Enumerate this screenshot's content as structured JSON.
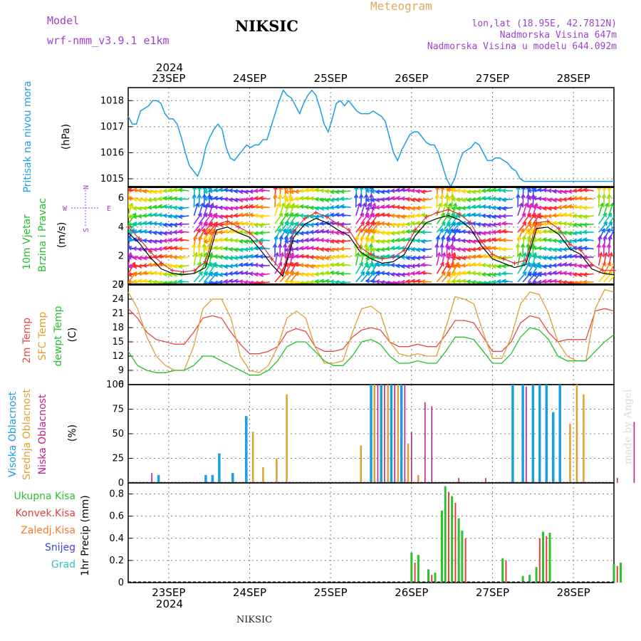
{
  "header": {
    "model_label": "Model",
    "model_name": "wrf-nmm_v3.9.1  e1km",
    "station": "NIKSIC",
    "product": "Meteogram",
    "lonlat": "lon,lat (18.95E, 42.7812N)",
    "elevation": "Nadmorska Visina 647m",
    "model_elevation": "Nadmorska Visina u modelu 644.092m",
    "year": "2024",
    "watermark": "made by Angel",
    "footer_station": "NIKSIC"
  },
  "colors": {
    "pressure": "#1a9fe0",
    "wind_speed": "#000000",
    "wind_gust": "#e0303a",
    "t2m": "#e34a4a",
    "tsfc": "#e0a030",
    "dewpoint": "#22c22a",
    "high_cloud": "#1a9fe0",
    "mid_cloud": "#e0a030",
    "low_cloud": "#c0208a",
    "total_precip": "#2ec02e",
    "conv_precip": "#e04040",
    "frozen_precip": "#f07c30",
    "snow": "#4040e0",
    "hail": "#30c0c0",
    "model_label": "#a040d0",
    "info_text": "#a040d0",
    "product_title": "#e0a860"
  },
  "dates": [
    "23SEP",
    "24SEP",
    "25SEP",
    "26SEP",
    "27SEP",
    "28SEP"
  ],
  "panels": {
    "pressure": {
      "labels": [
        "Pritisak na nivou mora",
        "(hPa)"
      ],
      "ticks": [
        "1015",
        "1016",
        "1017",
        "1018"
      ]
    },
    "wind": {
      "labels": [
        "10m Vjetar",
        "Brzina i Pravac",
        "(m/s)"
      ],
      "ticks": [
        "0",
        "2",
        "4",
        "6"
      ],
      "compass": {
        "n": "N",
        "s": "S",
        "e": "E",
        "w": "W"
      }
    },
    "temperature": {
      "labels": [
        "2m Temp",
        "SFC Temp",
        "dewpt Temp",
        "(C)"
      ],
      "ticks": [
        "6",
        "9",
        "12",
        "15",
        "18",
        "21",
        "24",
        "27"
      ]
    },
    "cloud": {
      "labels": [
        "Visoka Oblacnost",
        "Srednja Oblacnost",
        "Niska Oblacnost",
        "(%)"
      ],
      "ticks": [
        "0",
        "25",
        "50",
        "75",
        "100"
      ]
    },
    "precip": {
      "labels": [
        "1hr Precip (mm)"
      ],
      "legend": [
        "Ukupna Kisa",
        "Konvek.Kisa",
        "Zaledj.Kisa",
        "Snijeg",
        "Grad"
      ],
      "ticks": [
        "0",
        "0.2",
        "0.4",
        "0.6",
        "0.8"
      ]
    }
  },
  "chart_data": [
    {
      "type": "line",
      "name": "pressure",
      "ylabel": "(hPa)",
      "ylim": [
        1014.7,
        1018.5
      ],
      "x_hours": [
        0,
        6,
        12,
        18,
        24,
        30,
        36,
        42,
        48,
        54,
        60,
        66,
        72,
        78,
        84,
        90,
        96,
        102,
        108,
        114,
        120,
        126,
        132,
        138,
        144,
        150,
        156,
        162,
        168,
        174,
        180,
        186,
        192,
        198,
        204,
        210,
        216,
        222,
        228,
        234,
        240,
        246,
        252,
        258,
        264,
        270,
        276,
        282,
        288,
        294,
        300,
        306,
        312,
        318,
        324,
        330,
        336,
        342,
        348,
        354,
        360,
        366,
        372,
        378,
        384,
        390,
        396,
        402,
        408,
        414,
        420,
        426,
        432,
        438,
        444,
        450,
        456,
        462,
        468,
        474,
        480,
        486,
        492,
        498,
        504,
        510,
        516,
        522,
        528,
        534,
        540,
        546,
        552,
        558,
        564,
        570,
        576,
        582,
        588,
        594,
        600,
        606,
        612,
        618,
        624,
        630,
        636,
        642,
        648,
        654,
        660,
        666,
        672,
        678,
        684,
        690,
        696,
        702,
        708,
        714
      ],
      "series": [
        {
          "values": [
            1017.4,
            1017.1,
            1017.1,
            1017.6,
            1017.7,
            1017.8,
            1018.0,
            1018.0,
            1017.9,
            1017.5,
            1017.3,
            1017.3,
            1017.1,
            1016.6,
            1016.0,
            1015.5,
            1015.3,
            1015.1,
            1015.5,
            1016.2,
            1016.6,
            1016.9,
            1017.1,
            1016.9,
            1016.2,
            1015.8,
            1015.7,
            1015.9,
            1016.1,
            1016.3,
            1016.2,
            1016.3,
            1016.3,
            1016.5,
            1016.5,
            1017.0,
            1017.5,
            1018.0,
            1018.4,
            1018.2,
            1018.1,
            1017.8,
            1017.5,
            1017.9,
            1018.2,
            1018.4,
            1018.2,
            1017.7,
            1017.1,
            1016.8,
            1017.3,
            1017.9,
            1018.0,
            1017.8,
            1018.0,
            1017.8,
            1017.6,
            1017.5,
            1017.5,
            1017.5,
            1017.6,
            1017.5,
            1017.4,
            1017.2,
            1016.6,
            1016.0,
            1015.7,
            1016.1,
            1016.4,
            1016.7,
            1016.8,
            1016.8,
            1016.6,
            1016.4,
            1016.3,
            1016.3,
            1016.0,
            1015.5,
            1015.0,
            1014.7,
            1015.0,
            1015.6,
            1016.0,
            1016.1,
            1016.2,
            1016.4,
            1016.3,
            1016.0,
            1015.7,
            1015.7,
            1015.8,
            1015.8,
            1015.7,
            1015.6,
            1015.4,
            1015.3,
            1015.0,
            1014.9,
            1014.9,
            1014.9,
            1014.9,
            1014.9,
            1014.9,
            1014.9,
            1014.9,
            1014.9,
            1014.9,
            1014.9,
            1014.9,
            1014.9,
            1014.9,
            1014.9,
            1014.9,
            1014.9,
            1014.9,
            1014.9,
            1014.9,
            1014.9,
            1014.9,
            1014.9
          ]
        }
      ]
    },
    {
      "type": "line",
      "name": "wind",
      "ylabel": "(m/s)",
      "ylim": [
        0,
        6.8
      ],
      "series": [
        {
          "values": [
            3.6,
            2.9,
            1.9,
            1.1,
            0.8,
            0.7,
            0.8,
            1.2,
            3.8,
            4.0,
            3.6,
            3.3,
            2.4,
            1.4,
            0.6,
            3.3,
            4.2,
            4.6,
            4.3,
            3.8,
            3.4,
            2.3,
            1.8,
            1.5,
            1.6,
            2.1,
            3.4,
            4.3,
            4.6,
            4.8,
            4.5,
            3.9,
            2.7,
            1.8,
            1.5,
            1.2,
            1.4,
            3.9,
            4.0,
            3.5,
            2.5,
            2.1,
            1.1,
            0.8,
            0.7
          ]
        },
        {
          "values": [
            4.0,
            3.2,
            2.3,
            1.5,
            1.0,
            0.9,
            1.0,
            1.6,
            4.2,
            4.4,
            4.0,
            3.6,
            2.9,
            1.8,
            0.9,
            3.7,
            4.6,
            5.0,
            4.7,
            4.2,
            3.8,
            2.6,
            2.1,
            1.8,
            1.9,
            2.4,
            3.8,
            4.7,
            5.0,
            5.2,
            4.9,
            4.3,
            3.0,
            2.1,
            1.8,
            1.5,
            1.7,
            4.3,
            4.4,
            3.9,
            2.8,
            2.4,
            1.4,
            1.0,
            1.0
          ]
        }
      ]
    },
    {
      "type": "line",
      "name": "temperature",
      "ylabel": "(C)",
      "ylim": [
        6,
        27
      ],
      "series": [
        {
          "values": [
            22,
            20,
            17,
            15.5,
            15,
            14.5,
            14.5,
            17,
            20,
            20.5,
            20,
            17,
            14.5,
            12.5,
            12.5,
            13,
            14,
            17,
            17.8,
            17.2,
            14,
            13,
            13,
            13.5,
            16,
            17.5,
            18,
            17.5,
            15,
            14,
            14,
            14.5,
            14,
            14,
            16.5,
            19.5,
            19.5,
            19,
            16,
            13,
            13,
            15,
            19,
            20.5,
            20,
            17,
            15,
            15.5,
            15.5,
            15.5,
            21.5,
            22,
            21.5
          ]
        },
        {
          "values": [
            25.5,
            22,
            16,
            12,
            10,
            9,
            9,
            14,
            22,
            24,
            24,
            20,
            12,
            9,
            8.5,
            10,
            14,
            20,
            21.5,
            20,
            14,
            10.5,
            10.5,
            11,
            17,
            22,
            22.5,
            21,
            15,
            12.5,
            12,
            12.5,
            12,
            12,
            18,
            24.5,
            24,
            23,
            17,
            11.5,
            11.5,
            16,
            23,
            25.5,
            25,
            21,
            15,
            12,
            11,
            11,
            22,
            26,
            25.5
          ]
        },
        {
          "values": [
            13,
            10,
            9,
            8.5,
            8.5,
            9,
            9,
            10,
            12,
            12,
            11,
            10,
            9,
            8,
            8,
            9,
            11,
            14,
            15,
            15,
            13,
            11,
            10,
            10,
            12,
            15,
            15.5,
            14.5,
            12,
            10.5,
            10.5,
            11,
            10.5,
            10.5,
            13,
            16,
            16,
            15.5,
            13,
            10.5,
            10.5,
            12.5,
            16,
            18,
            17.5,
            15.5,
            12,
            11,
            11,
            11,
            13,
            15,
            16.5
          ]
        }
      ]
    },
    {
      "type": "bar",
      "name": "cloud",
      "ylabel": "(%)",
      "ylim": [
        0,
        100
      ],
      "series": [
        {
          "values": [
            {
              "h": 9,
              "v": 8
            },
            {
              "h": 23,
              "v": 8
            },
            {
              "h": 25,
              "v": 8
            },
            {
              "h": 27,
              "v": 30
            },
            {
              "h": 31,
              "v": 10
            },
            {
              "h": 35,
              "v": 68
            },
            {
              "h": 72,
              "v": 100
            },
            {
              "h": 75,
              "v": 100
            },
            {
              "h": 78,
              "v": 100
            },
            {
              "h": 81,
              "v": 100
            },
            {
              "h": 114,
              "v": 100
            },
            {
              "h": 117,
              "v": 100
            },
            {
              "h": 120,
              "v": 100
            },
            {
              "h": 122,
              "v": 100
            },
            {
              "h": 124,
              "v": 100
            },
            {
              "h": 126,
              "v": 72
            },
            {
              "h": 128,
              "v": 100
            }
          ]
        },
        {
          "values": [
            {
              "h": 37,
              "v": 52
            },
            {
              "h": 40,
              "v": 16
            },
            {
              "h": 44,
              "v": 25
            },
            {
              "h": 47,
              "v": 90
            },
            {
              "h": 69,
              "v": 38
            },
            {
              "h": 73,
              "v": 100
            },
            {
              "h": 77,
              "v": 100
            },
            {
              "h": 80,
              "v": 100
            },
            {
              "h": 83,
              "v": 40
            },
            {
              "h": 86,
              "v": 8
            },
            {
              "h": 131,
              "v": 60
            },
            {
              "h": 133,
              "v": 100
            },
            {
              "h": 135,
              "v": 90
            }
          ]
        },
        {
          "values": [
            {
              "h": 7,
              "v": 10
            },
            {
              "h": 74,
              "v": 100
            },
            {
              "h": 76,
              "v": 100
            },
            {
              "h": 79,
              "v": 100
            },
            {
              "h": 82,
              "v": 100
            },
            {
              "h": 84,
              "v": 52
            },
            {
              "h": 88,
              "v": 82
            },
            {
              "h": 90,
              "v": 78
            },
            {
              "h": 98,
              "v": 5
            },
            {
              "h": 106,
              "v": 5
            },
            {
              "h": 118,
              "v": 98
            },
            {
              "h": 145,
              "v": 5
            },
            {
              "h": 150,
              "v": 62
            },
            {
              "h": 153,
              "v": 5
            },
            {
              "h": 158,
              "v": 40
            },
            {
              "h": 160,
              "v": 85
            },
            {
              "h": 165,
              "v": 68
            },
            {
              "h": 167,
              "v": 68
            },
            {
              "h": 171,
              "v": 25
            },
            {
              "h": 174,
              "v": 22
            },
            {
              "h": 178,
              "v": 36
            },
            {
              "h": 180,
              "v": 18
            },
            {
              "h": 195,
              "v": 84
            },
            {
              "h": 201,
              "v": 30
            },
            {
              "h": 203,
              "v": 5
            },
            {
              "h": 220,
              "v": 15
            },
            {
              "h": 226,
              "v": 55
            },
            {
              "h": 228,
              "v": 30
            }
          ]
        }
      ]
    },
    {
      "type": "bar",
      "name": "precip",
      "ylabel": "1hr Precip (mm)",
      "ylim": [
        0,
        0.9
      ],
      "series": [
        {
          "name": "Ukupna Kisa",
          "values": [
            {
              "h": 84,
              "v": 0.27
            },
            {
              "h": 86,
              "v": 0.25
            },
            {
              "h": 89,
              "v": 0.12
            },
            {
              "h": 91,
              "v": 0.09
            },
            {
              "h": 93,
              "v": 0.65
            },
            {
              "h": 94,
              "v": 0.87
            },
            {
              "h": 96,
              "v": 0.78
            },
            {
              "h": 98,
              "v": 0.58
            },
            {
              "h": 99,
              "v": 0.47
            },
            {
              "h": 111,
              "v": 0.22
            },
            {
              "h": 117,
              "v": 0.06
            },
            {
              "h": 119,
              "v": 0.07
            },
            {
              "h": 121,
              "v": 0.14
            },
            {
              "h": 123,
              "v": 0.46
            },
            {
              "h": 125,
              "v": 0.45
            },
            {
              "h": 144,
              "v": 0.17
            },
            {
              "h": 146,
              "v": 0.18
            },
            {
              "h": 167,
              "v": 0.03
            },
            {
              "h": 169,
              "v": 0.06
            }
          ]
        },
        {
          "name": "Konvek.Kisa",
          "values": [
            {
              "h": 85,
              "v": 0.18
            },
            {
              "h": 90,
              "v": 0.07
            },
            {
              "h": 95,
              "v": 0.82
            },
            {
              "h": 97,
              "v": 0.72
            },
            {
              "h": 100,
              "v": 0.4
            },
            {
              "h": 112,
              "v": 0.2
            },
            {
              "h": 122,
              "v": 0.4
            },
            {
              "h": 124,
              "v": 0.42
            },
            {
              "h": 145,
              "v": 0.15
            },
            {
              "h": 168,
              "v": 0.04
            }
          ]
        },
        {
          "name": "Zaledj.Kisa",
          "values": []
        },
        {
          "name": "Snijeg",
          "values": []
        },
        {
          "name": "Grad",
          "values": []
        }
      ]
    }
  ]
}
